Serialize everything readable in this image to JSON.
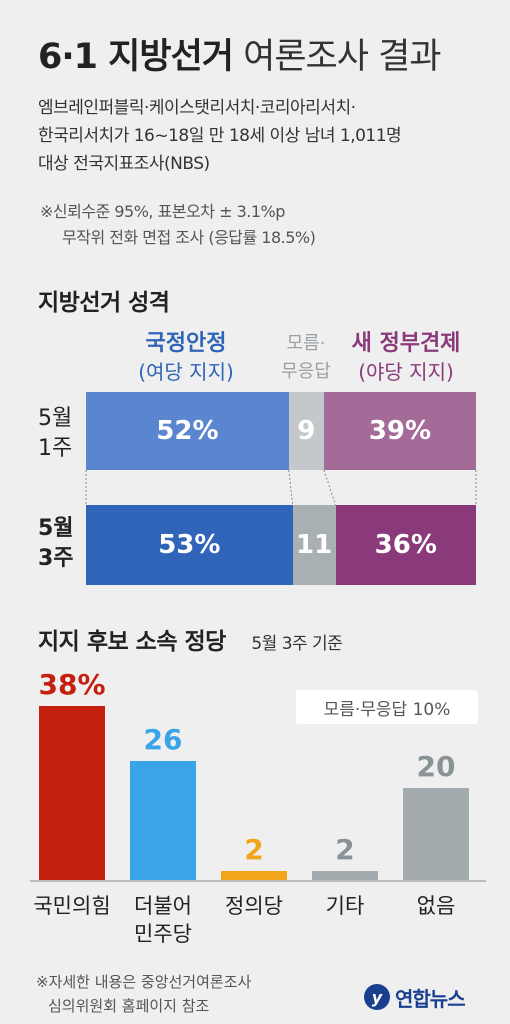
{
  "title": {
    "bold": "6·1 지방선거",
    "light": "여론조사 결과"
  },
  "intro": [
    "엠브레인퍼블릭·케이스탯리서치·코리아리서치·",
    "한국리서치가 16~18일 만 18세 이상 남녀 1,011명",
    "대상 전국지표조사(NBS)"
  ],
  "method_note": [
    "※신뢰수준 95%, 표본오차 ± 3.1%p",
    "무작위 전화 면접 조사 (응답률 18.5%)"
  ],
  "chart_data": [
    {
      "type": "bar",
      "stacked": true,
      "orientation": "horizontal",
      "title": "지방선거 성격",
      "categories": [
        "5월 1주",
        "5월 3주"
      ],
      "series": [
        {
          "name": "국정안정 (여당 지지)",
          "name_line1": "국정안정",
          "name_line2": "(여당 지지)",
          "values": [
            52,
            53
          ],
          "labels": [
            "52%",
            "53%"
          ],
          "colors": [
            "#5a86cf",
            "#2f64b8"
          ],
          "header_color": "#2f64b8"
        },
        {
          "name": "모름·무응답",
          "name_line1": "모름·",
          "name_line2": "무응답",
          "values": [
            9,
            11
          ],
          "labels": [
            "9",
            "11"
          ],
          "colors": [
            "#c4c8ca",
            "#a9b0b3"
          ],
          "header_color": "#9aa0a4"
        },
        {
          "name": "새 정부견제 (야당 지지)",
          "name_line1": "새 정부견제",
          "name_line2": "(야당 지지)",
          "values": [
            39,
            36
          ],
          "labels": [
            "39%",
            "36%"
          ],
          "colors": [
            "#a46a98",
            "#8a3a7a"
          ],
          "header_color": "#8a3a7a"
        }
      ],
      "row_labels": [
        [
          "5월",
          "1주"
        ],
        [
          "5월",
          "3주"
        ]
      ]
    },
    {
      "type": "bar",
      "title": "지지 후보 소속 정당",
      "subtitle": "5월 3주 기준",
      "categories": [
        "국민의힘",
        "더불어 민주당",
        "정의당",
        "기타",
        "없음"
      ],
      "category_lines": [
        [
          "국민의힘"
        ],
        [
          "더불어",
          "민주당"
        ],
        [
          "정의당"
        ],
        [
          "기타"
        ],
        [
          "없음"
        ]
      ],
      "values": [
        38,
        26,
        2,
        2,
        20
      ],
      "value_labels": [
        "38%",
        "26",
        "2",
        "2",
        "20"
      ],
      "colors": [
        "#c5200f",
        "#3aa4e8",
        "#f2a51b",
        "#a4abae",
        "#a4abae"
      ],
      "label_colors": [
        "#c5200f",
        "#3aa4e8",
        "#f2a51b",
        "#8a9296",
        "#8a9296"
      ],
      "annotation": "모름·무응답 10%",
      "ylim": [
        0,
        38
      ]
    }
  ],
  "footnote": [
    "※자세한 내용은 중앙선거여론조사",
    "심의위원회 홈페이지 참조"
  ],
  "logo": {
    "mark": "y",
    "text": "연합뉴스"
  }
}
